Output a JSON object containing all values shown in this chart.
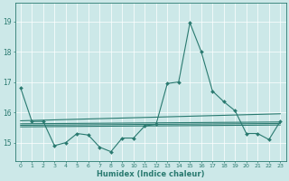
{
  "xlabel": "Humidex (Indice chaleur)",
  "xlim": [
    -0.5,
    23.5
  ],
  "ylim": [
    14.4,
    19.6
  ],
  "yticks": [
    15,
    16,
    17,
    18,
    19
  ],
  "xtick_labels": [
    "0",
    "1",
    "2",
    "3",
    "4",
    "5",
    "6",
    "7",
    "8",
    "9",
    "10",
    "11",
    "12",
    "13",
    "14",
    "15",
    "16",
    "17",
    "18",
    "19",
    "20",
    "21",
    "22",
    "23"
  ],
  "bg_color": "#cce8e8",
  "line_color": "#2a7a70",
  "grid_color": "#ffffff",
  "line1_x": [
    0,
    1,
    2,
    3,
    4,
    5,
    6,
    7,
    8,
    9,
    10,
    11,
    12,
    13,
    14,
    15,
    16,
    17,
    18,
    19,
    20,
    21,
    22,
    23
  ],
  "line1_y": [
    16.8,
    15.7,
    15.7,
    14.9,
    15.0,
    15.3,
    15.25,
    14.85,
    14.7,
    15.15,
    15.15,
    15.55,
    15.6,
    16.95,
    17.0,
    18.95,
    18.0,
    16.7,
    16.35,
    16.05,
    15.3,
    15.3,
    15.1,
    15.7
  ],
  "line2_x": [
    0,
    23
  ],
  "line2_y": [
    15.72,
    15.95
  ],
  "line3_x": [
    0,
    23
  ],
  "line3_y": [
    15.62,
    15.68
  ],
  "line4_x": [
    0,
    23
  ],
  "line4_y": [
    15.57,
    15.63
  ],
  "line5_x": [
    0,
    23
  ],
  "line5_y": [
    15.52,
    15.58
  ],
  "figsize": [
    3.2,
    2.0
  ],
  "dpi": 100
}
